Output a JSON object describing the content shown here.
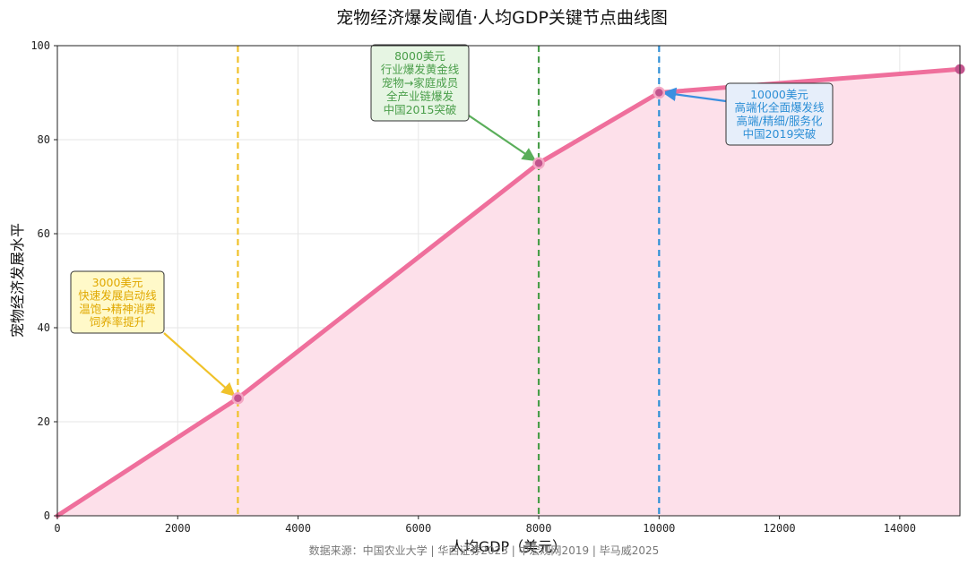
{
  "chart_data": {
    "type": "area",
    "title": "宠物经济爆发阈值·人均GDP关键节点曲线图",
    "xlabel": "人均GDP（美元）",
    "ylabel": "宠物经济发展水平",
    "xlim": [
      0,
      15000
    ],
    "ylim": [
      0,
      100
    ],
    "x_ticks": [
      0,
      2000,
      4000,
      6000,
      8000,
      10000,
      12000,
      14000
    ],
    "y_ticks": [
      0,
      20,
      40,
      60,
      80,
      100
    ],
    "grid": true,
    "series": [
      {
        "x": [
          0,
          3000,
          8000,
          10000,
          15000
        ],
        "y": [
          0,
          25,
          75,
          90,
          95
        ],
        "line_color": "#ef6f9c",
        "fill_color": "#fde0ea"
      }
    ],
    "key_points": [
      {
        "x": 3000,
        "y": 25,
        "color": "#f0c22a"
      },
      {
        "x": 8000,
        "y": 75,
        "color": "#4a9e4a"
      },
      {
        "x": 10000,
        "y": 90,
        "color": "#2d8fd6"
      }
    ],
    "annotations": [
      {
        "target_x": 3000,
        "target_y": 25,
        "lines": [
          "3000美元",
          "快速发展启动线",
          "温饱→精神消费",
          "饲养率提升"
        ],
        "text_color": "#e0a800",
        "box_fill": "#fff9c9",
        "arrow_color": "#f0c22a"
      },
      {
        "target_x": 8000,
        "target_y": 75,
        "lines": [
          "8000美元",
          "行业爆发黄金线",
          "宠物→家庭成员",
          "全产业链爆发",
          "中国2015突破"
        ],
        "text_color": "#4a9e4a",
        "box_fill": "#e6f5e3",
        "arrow_color": "#5aae5a"
      },
      {
        "target_x": 10000,
        "target_y": 90,
        "lines": [
          "10000美元",
          "高端化全面爆发线",
          "高端/精细/服务化",
          "中国2019突破"
        ],
        "text_color": "#2d8fd6",
        "box_fill": "#e6eefa",
        "arrow_color": "#3a8fe0"
      }
    ],
    "source": "数据来源：中国农业大学 | 华西证券2023 | 中宏观网2019 | 毕马威2025"
  }
}
